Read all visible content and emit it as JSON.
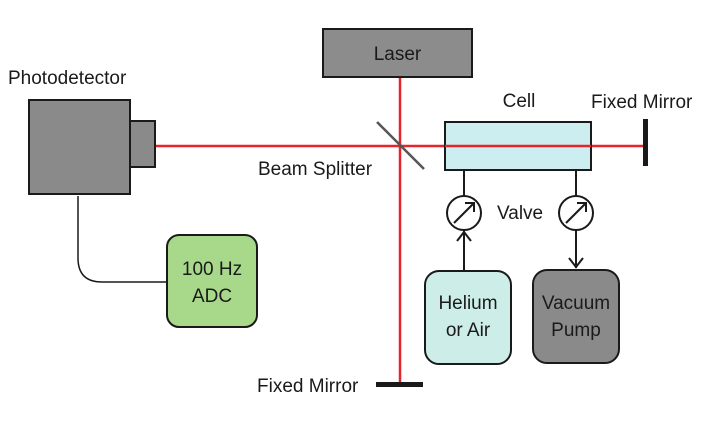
{
  "labels": {
    "laser": "Laser",
    "photodetector": "Photodetector",
    "cell": "Cell",
    "fixed_mirror_right": "Fixed Mirror",
    "fixed_mirror_bottom": "Fixed Mirror",
    "beam_splitter": "Beam Splitter",
    "valve": "Valve",
    "adc_line1": "100 Hz",
    "adc_line2": "ADC",
    "helium_line1": "Helium",
    "helium_line2": "or Air",
    "vacuum_line1": "Vacuum",
    "vacuum_line2": "Pump"
  },
  "colors": {
    "beam": "#e8232b",
    "laser_fill": "#8c8c8c",
    "detector_fill": "#8a8a8a",
    "cell_fill": "#cdeef0",
    "adc_fill": "#a8d98a",
    "helium_fill": "#cdeee8",
    "vacuum_fill": "#8a8a8a",
    "outline": "#1a1a1a"
  }
}
